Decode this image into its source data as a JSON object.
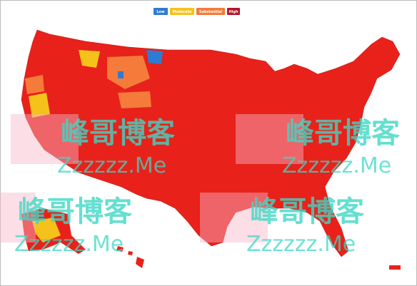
{
  "legend": [
    {
      "label": "Low",
      "color": "#2e7bd3"
    },
    {
      "label": "Moderate",
      "color": "#f5c21b"
    },
    {
      "label": "Substantial",
      "color": "#f47b3a"
    },
    {
      "label": "High",
      "color": "#b3152c"
    }
  ],
  "watermarks": [
    {
      "title": "峰哥博客",
      "subtitle": "Zzzzzz.Me"
    },
    {
      "title": "峰哥博客",
      "subtitle": "Zzzzzz.Me"
    },
    {
      "title": "峰哥博客",
      "subtitle": "Zzzzzz.Me"
    },
    {
      "title": "峰哥博客",
      "subtitle": "Zzzzzz.Me"
    }
  ]
}
